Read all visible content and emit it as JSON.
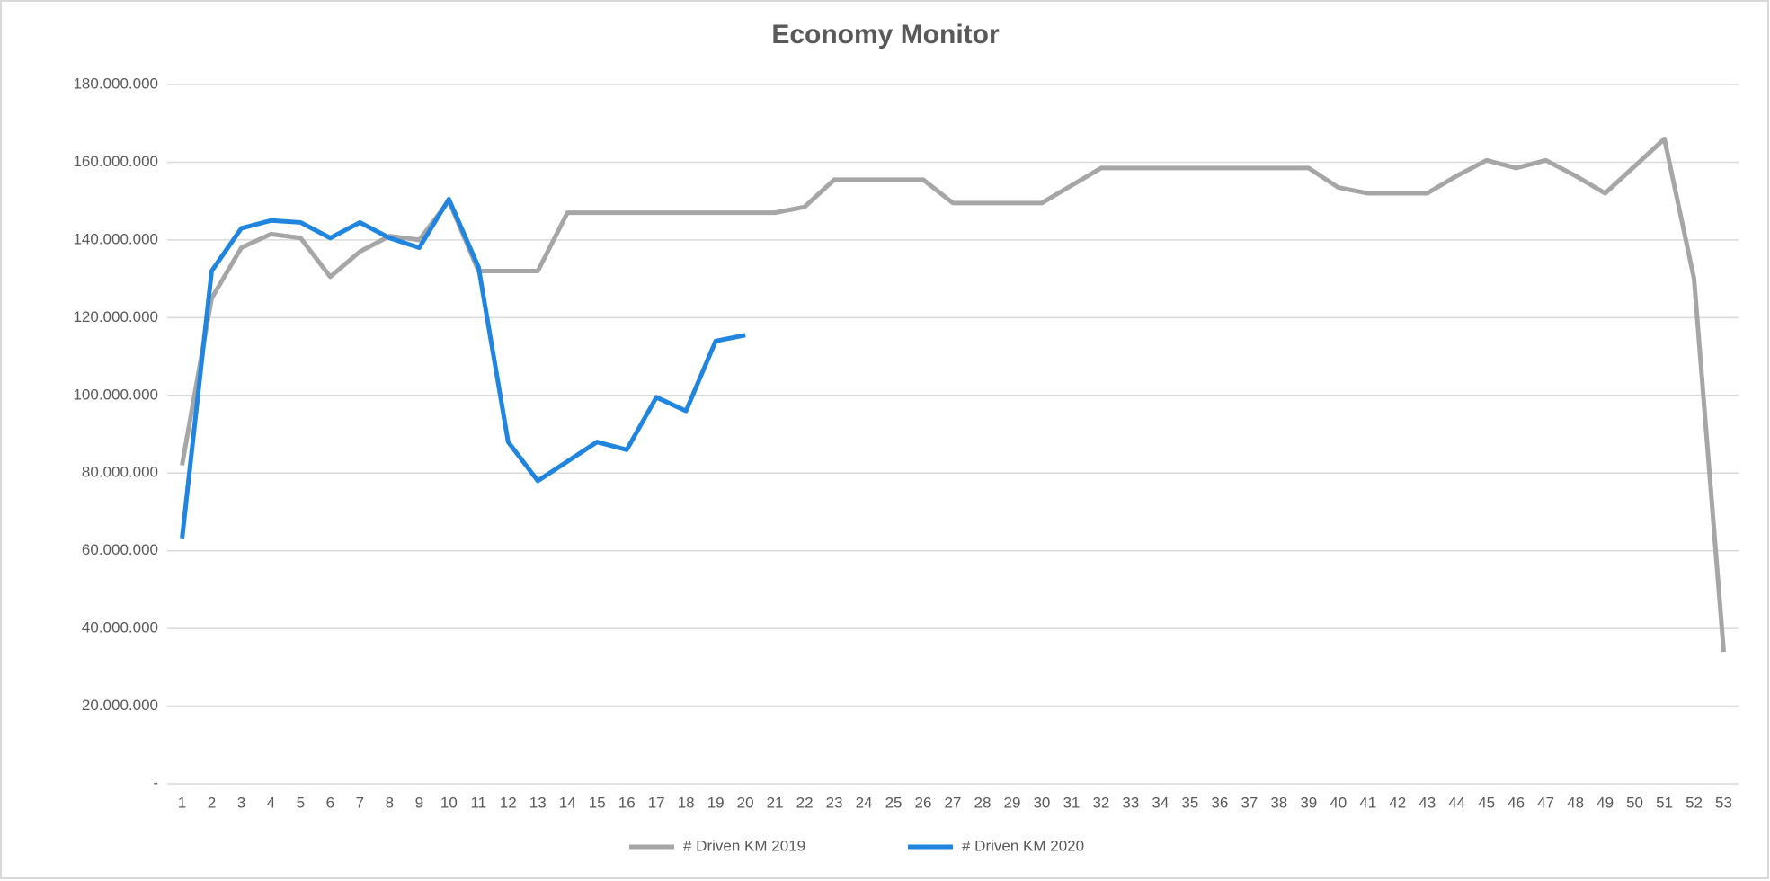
{
  "chart_data": {
    "type": "line",
    "title": "Economy Monitor",
    "categories": [
      "1",
      "2",
      "3",
      "4",
      "5",
      "6",
      "7",
      "8",
      "9",
      "10",
      "11",
      "12",
      "13",
      "14",
      "15",
      "16",
      "17",
      "18",
      "19",
      "20",
      "21",
      "22",
      "23",
      "24",
      "25",
      "26",
      "27",
      "28",
      "29",
      "30",
      "31",
      "32",
      "33",
      "34",
      "35",
      "36",
      "37",
      "38",
      "39",
      "40",
      "41",
      "42",
      "43",
      "44",
      "45",
      "46",
      "47",
      "48",
      "49",
      "50",
      "51",
      "52",
      "53"
    ],
    "series": [
      {
        "name": "# Driven KM 2019",
        "color": "#a6a6a6",
        "values": [
          82000000,
          125000000,
          138000000,
          141500000,
          140500000,
          130500000,
          137000000,
          141000000,
          140000000,
          150000000,
          132000000,
          132000000,
          132000000,
          147000000,
          147000000,
          147000000,
          147000000,
          147000000,
          147000000,
          147000000,
          147000000,
          148500000,
          155500000,
          155500000,
          155500000,
          155500000,
          149500000,
          149500000,
          149500000,
          149500000,
          154000000,
          158500000,
          158500000,
          158500000,
          158500000,
          158500000,
          158500000,
          158500000,
          158500000,
          153500000,
          152000000,
          152000000,
          152000000,
          156500000,
          160500000,
          158500000,
          160500000,
          156500000,
          152000000,
          159000000,
          166000000,
          130000000,
          34000000
        ]
      },
      {
        "name": "# Driven KM 2020",
        "color": "#1f85de",
        "values": [
          63000000,
          132000000,
          143000000,
          145000000,
          144500000,
          140500000,
          144500000,
          140500000,
          138000000,
          150500000,
          133000000,
          88000000,
          78000000,
          83000000,
          88000000,
          86000000,
          99500000,
          96000000,
          114000000,
          115500000,
          null,
          null,
          null,
          null,
          null,
          null,
          null,
          null,
          null,
          null,
          null,
          null,
          null,
          null,
          null,
          null,
          null,
          null,
          null,
          null,
          null,
          null,
          null,
          null,
          null,
          null,
          null,
          null,
          null,
          null,
          null,
          null,
          null
        ]
      }
    ],
    "ylim": [
      0,
      180000000
    ],
    "yticks": [
      {
        "value": 0,
        "label": "-"
      },
      {
        "value": 20000000,
        "label": "20.000.000"
      },
      {
        "value": 40000000,
        "label": "40.000.000"
      },
      {
        "value": 60000000,
        "label": "60.000.000"
      },
      {
        "value": 80000000,
        "label": "80.000.000"
      },
      {
        "value": 100000000,
        "label": "100.000.000"
      },
      {
        "value": 120000000,
        "label": "120.000.000"
      },
      {
        "value": 140000000,
        "label": "140.000.000"
      },
      {
        "value": 160000000,
        "label": "160.000.000"
      },
      {
        "value": 180000000,
        "label": "180.000.000"
      }
    ],
    "grid": true
  }
}
